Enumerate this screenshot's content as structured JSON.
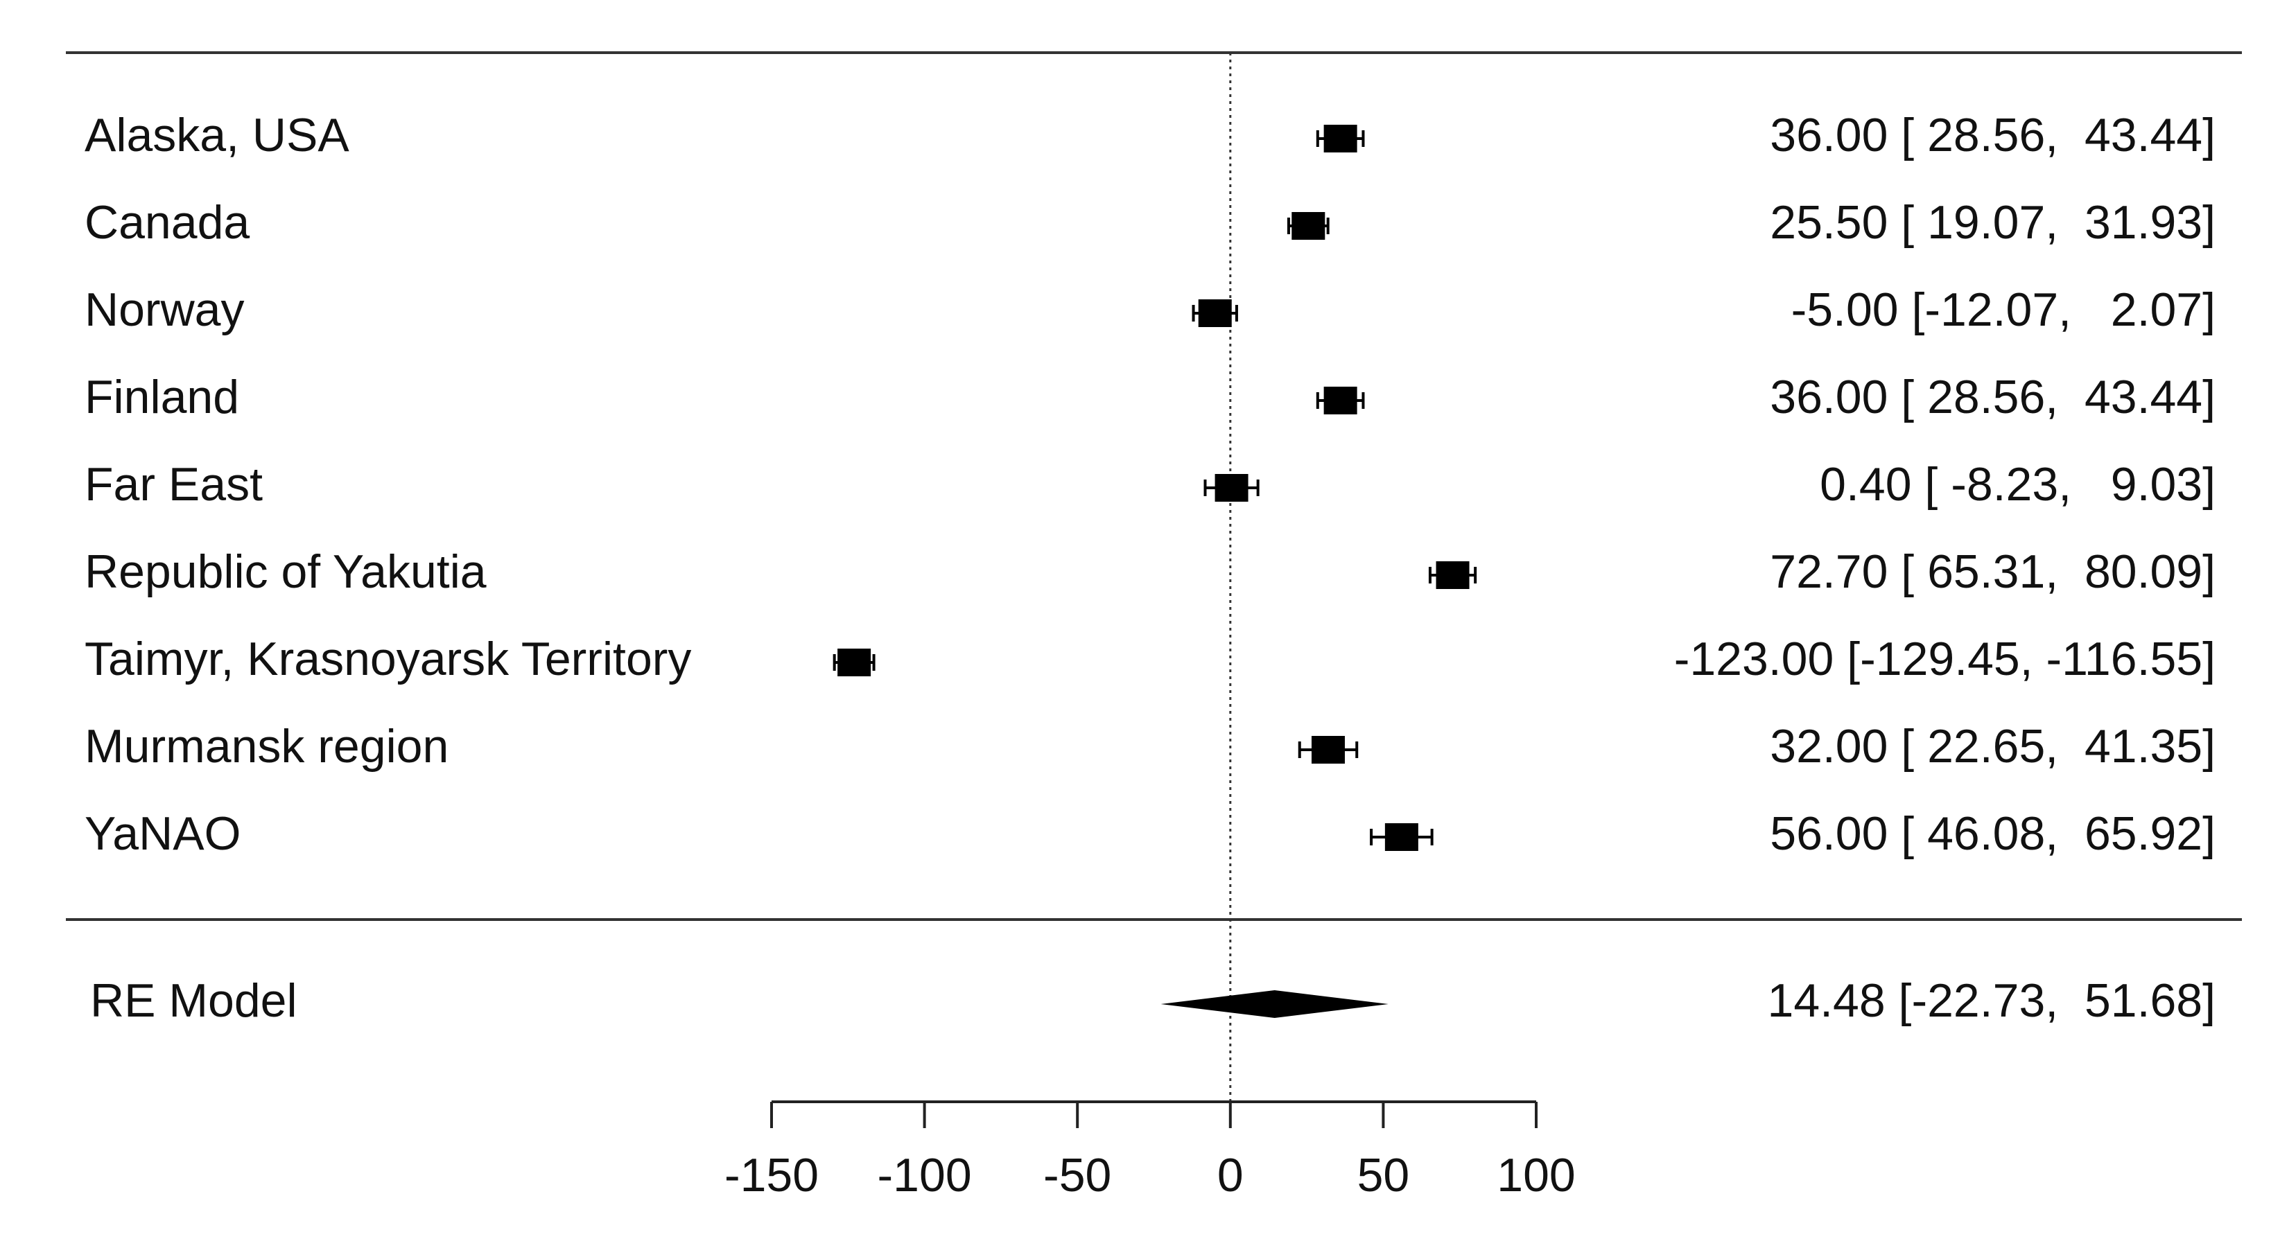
{
  "chart_data": {
    "type": "forest",
    "categories": [
      "Alaska, USA",
      "Canada",
      "Norway",
      "Finland",
      "Far East",
      "Republic of Yakutia",
      "Taimyr, Krasnoyarsk Territory",
      "Murmansk region",
      "YaNAO"
    ],
    "values": [
      36.0,
      25.5,
      -5.0,
      36.0,
      0.4,
      72.7,
      -123.0,
      32.0,
      56.0
    ],
    "lower": [
      28.56,
      19.07,
      -12.07,
      28.56,
      -8.23,
      65.31,
      -129.45,
      22.65,
      46.08
    ],
    "upper": [
      43.44,
      31.93,
      2.07,
      43.44,
      9.03,
      80.09,
      -116.55,
      41.35,
      65.92
    ],
    "value_labels": [
      "36.00 [ 28.56,  43.44]",
      "25.50 [ 19.07,  31.93]",
      "-5.00 [-12.07,   2.07]",
      "36.00 [ 28.56,  43.44]",
      "0.40 [ -8.23,   9.03]",
      "72.70 [ 65.31,  80.09]",
      "-123.00 [-129.45, -116.55]",
      "32.00 [ 22.65,  41.35]",
      "56.00 [ 46.08,  65.92]"
    ],
    "summary": {
      "name": "RE Model",
      "value": 14.48,
      "lower": -22.73,
      "upper": 51.68,
      "value_label": "14.48 [-22.73,  51.68]"
    },
    "reference_line": 0,
    "xlim": [
      -150,
      100
    ],
    "xticks": [
      -150,
      -100,
      -50,
      0,
      50,
      100
    ],
    "color": "#000000"
  }
}
